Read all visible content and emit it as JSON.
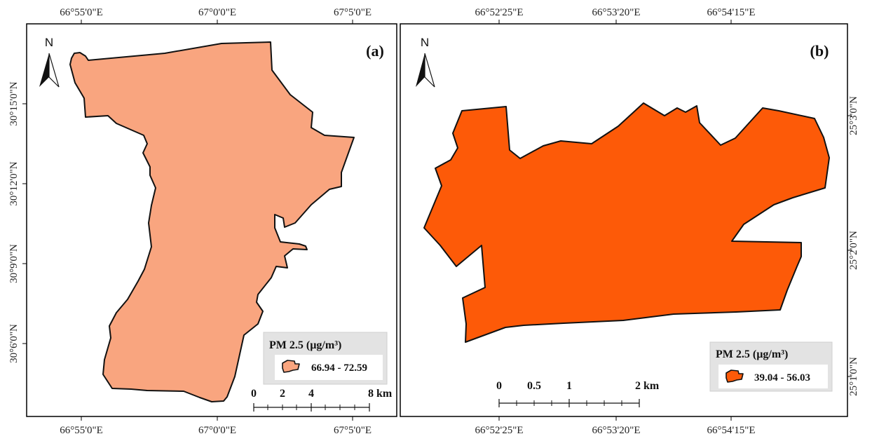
{
  "panel_a": {
    "letter": "(a)",
    "north": "N",
    "top_ticks": [
      "66°55'0\"E",
      "67°0'0\"E",
      "67°5'0\"E"
    ],
    "bottom_ticks": [
      "66°55'0\"E",
      "67°0'0\"E",
      "67°5'0\"E"
    ],
    "left_ticks": [
      "30°15'0\"N",
      "30°12'0\"N",
      "30°9'0\"N",
      "30°6'0\"N"
    ],
    "legend_title": "PM 2.5 (µg/m³)",
    "legend_range": "66.94 - 72.59",
    "fill_color": "#f9a57f",
    "scale_labels": [
      "0",
      "2",
      "4",
      "8 km"
    ]
  },
  "panel_b": {
    "letter": "(b)",
    "north": "N",
    "top_ticks": [
      "66°52'25\"E",
      "66°53'20\"E",
      "66°54'15\"E"
    ],
    "bottom_ticks": [
      "66°52'25\"E",
      "66°53'20\"E",
      "66°54'15\"E"
    ],
    "right_ticks": [
      "25°3'0\"N",
      "25°2'0\"N",
      "25°1'0\"N"
    ],
    "legend_title": "PM 2.5 (µg/m³)",
    "legend_range": "39.04 - 56.03",
    "fill_color": "#fd5a08",
    "scale_labels": [
      "0",
      "0.5",
      "1",
      "2 km"
    ]
  }
}
